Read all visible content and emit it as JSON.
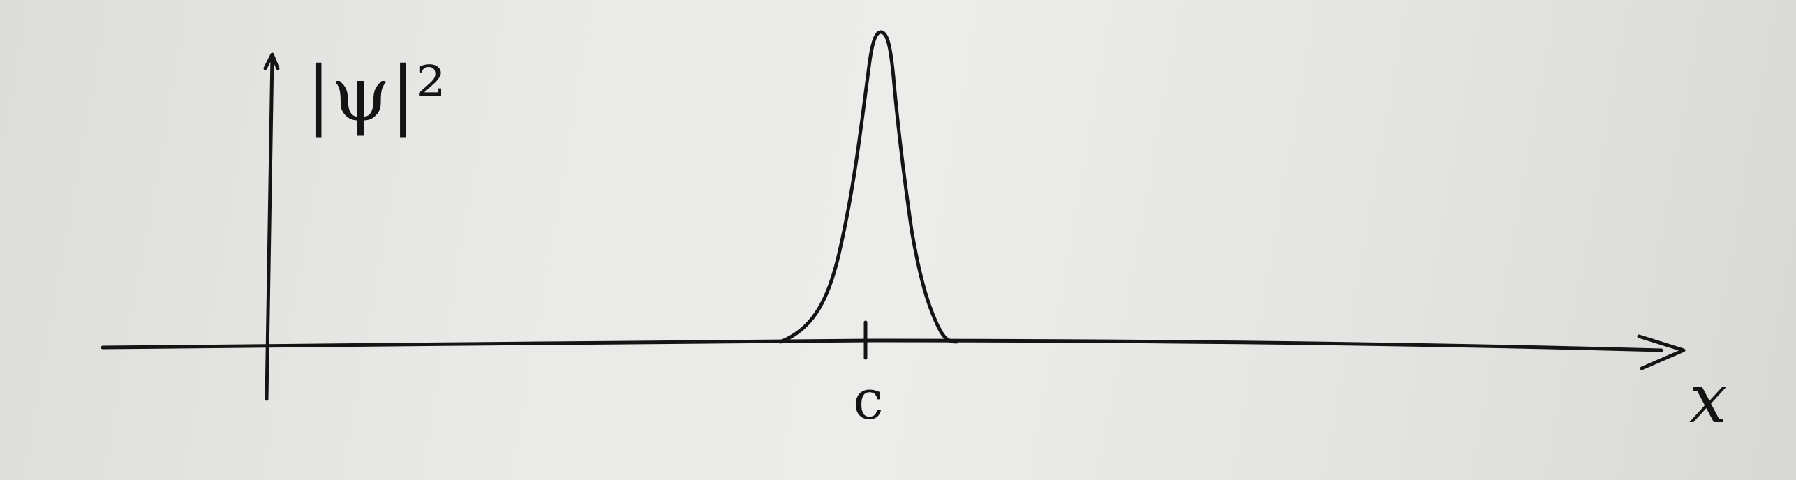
{
  "labels": {
    "y_axis": "|ψ|²",
    "x_axis": "x",
    "tick": "c"
  },
  "colors": {
    "ink": "#141414",
    "paper": "#e9e9e7"
  }
}
